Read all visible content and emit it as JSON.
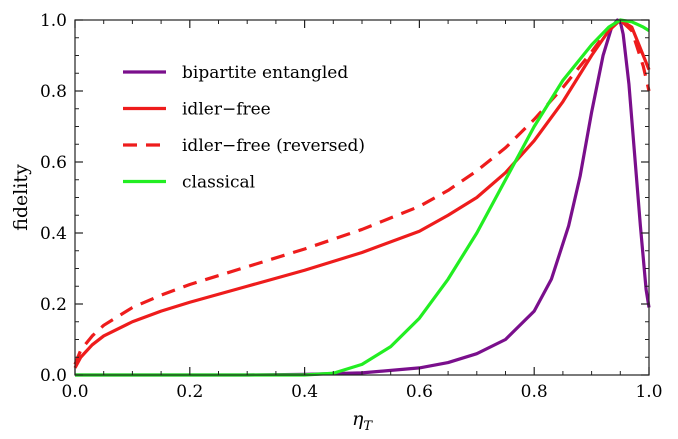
{
  "chart_data": {
    "type": "line",
    "title": "",
    "xlabel": "η",
    "xlabel_subscript": "T",
    "ylabel": "fidelity",
    "xlim": [
      0.0,
      1.0
    ],
    "ylim": [
      0.0,
      1.0
    ],
    "xticks": [
      "0.0",
      "0.2",
      "0.4",
      "0.6",
      "0.8",
      "1.0"
    ],
    "yticks": [
      "0.0",
      "0.2",
      "0.4",
      "0.6",
      "0.8",
      "1.0"
    ],
    "grid": false,
    "legend_position": "top-left",
    "series": [
      {
        "name": "bipartite entangled",
        "color": "#7a0f8c",
        "dash": "solid",
        "x": [
          0.0,
          0.1,
          0.2,
          0.3,
          0.4,
          0.5,
          0.6,
          0.65,
          0.7,
          0.75,
          0.8,
          0.83,
          0.86,
          0.88,
          0.9,
          0.92,
          0.935,
          0.945,
          0.95,
          0.955,
          0.965,
          0.975,
          0.985,
          0.995,
          1.0
        ],
        "y": [
          0.0,
          0.0,
          0.0,
          0.0,
          0.002,
          0.006,
          0.02,
          0.035,
          0.06,
          0.1,
          0.18,
          0.27,
          0.42,
          0.56,
          0.74,
          0.9,
          0.98,
          1.0,
          0.995,
          0.96,
          0.82,
          0.62,
          0.42,
          0.24,
          0.19
        ]
      },
      {
        "name": "idler−free",
        "color": "#ee1c1c",
        "dash": "solid",
        "x": [
          0.0,
          0.01,
          0.03,
          0.05,
          0.1,
          0.15,
          0.2,
          0.3,
          0.4,
          0.5,
          0.6,
          0.65,
          0.7,
          0.75,
          0.8,
          0.85,
          0.9,
          0.93,
          0.95,
          0.97,
          0.99,
          1.0
        ],
        "y": [
          0.02,
          0.05,
          0.085,
          0.11,
          0.15,
          0.18,
          0.205,
          0.25,
          0.295,
          0.345,
          0.405,
          0.45,
          0.5,
          0.57,
          0.66,
          0.77,
          0.9,
          0.97,
          1.0,
          0.98,
          0.9,
          0.86
        ]
      },
      {
        "name": "idler−free (reversed)",
        "color": "#ee1c1c",
        "dash": "dashed",
        "x": [
          0.0,
          0.01,
          0.03,
          0.05,
          0.1,
          0.15,
          0.2,
          0.3,
          0.4,
          0.5,
          0.6,
          0.65,
          0.7,
          0.75,
          0.8,
          0.85,
          0.9,
          0.93,
          0.95,
          0.97,
          0.99,
          1.0
        ],
        "y": [
          0.03,
          0.07,
          0.11,
          0.14,
          0.19,
          0.225,
          0.255,
          0.305,
          0.355,
          0.41,
          0.475,
          0.52,
          0.575,
          0.64,
          0.72,
          0.81,
          0.91,
          0.975,
          1.0,
          0.97,
          0.87,
          0.8
        ]
      },
      {
        "name": "classical",
        "color": "#22ee22",
        "dash": "solid",
        "x": [
          0.0,
          0.2,
          0.4,
          0.45,
          0.5,
          0.55,
          0.6,
          0.65,
          0.7,
          0.75,
          0.8,
          0.85,
          0.9,
          0.93,
          0.95,
          0.97,
          0.99,
          1.0
        ],
        "y": [
          0.0,
          0.0,
          0.0,
          0.005,
          0.03,
          0.08,
          0.16,
          0.27,
          0.4,
          0.55,
          0.7,
          0.83,
          0.93,
          0.98,
          1.0,
          0.995,
          0.98,
          0.97
        ]
      }
    ]
  }
}
